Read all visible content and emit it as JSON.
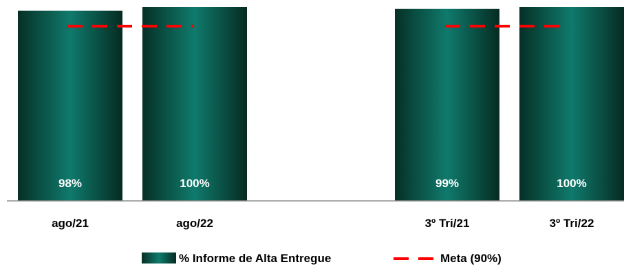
{
  "chart_data": {
    "type": "bar",
    "categories": [
      "ago/21",
      "ago/22",
      "3º Tri/21",
      "3º Tri/22"
    ],
    "series": [
      {
        "name": "% Informe de Alta Entregue",
        "values": [
          98,
          100,
          99,
          100
        ],
        "labels": [
          "98%",
          "100%",
          "99%",
          "100%"
        ]
      }
    ],
    "target": {
      "name": "Meta (90%)",
      "value": 90
    },
    "ylim": [
      0,
      100
    ],
    "legend_position": "bottom",
    "grid": false,
    "colors": {
      "bar_edge": "#0b3a2e",
      "bar_mid": "#0f7a6c",
      "bar_dark": "#062b22",
      "target_line": "#ff0000",
      "axis": "#8c8c8c",
      "bar_label": "#ffffff",
      "category_label": "#000000"
    }
  }
}
